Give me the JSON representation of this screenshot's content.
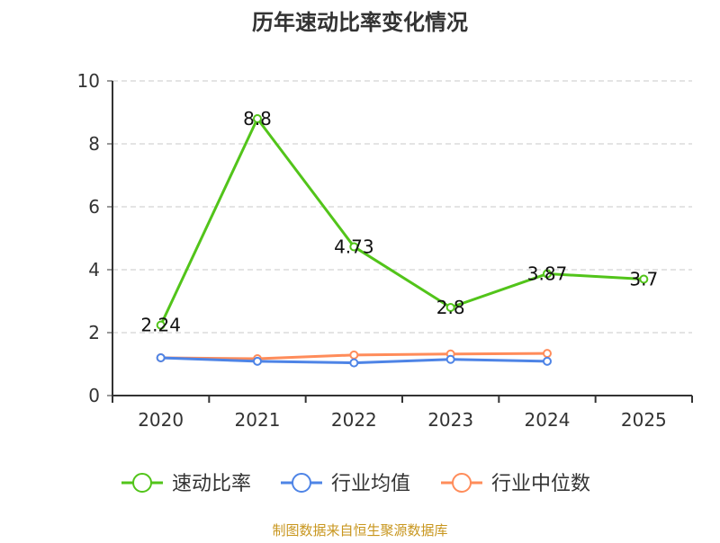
{
  "chart_data": {
    "type": "line",
    "title": "历年速动比率变化情况",
    "categories": [
      "2020",
      "2021",
      "2022",
      "2023",
      "2024",
      "2025"
    ],
    "ylim": [
      0,
      10
    ],
    "yticks": [
      "0",
      "2",
      "4",
      "6",
      "8",
      "10"
    ],
    "grid": true,
    "legend_position": "bottom",
    "series": [
      {
        "name": "速动比率",
        "color": "#52c41a",
        "values": [
          2.24,
          8.8,
          4.73,
          2.8,
          3.87,
          3.7
        ],
        "labels": [
          "2.24",
          "8.8",
          "4.73",
          "2.8",
          "3.87",
          "3.7"
        ]
      },
      {
        "name": "行业均值",
        "color": "#4e84e6",
        "values": [
          1.2,
          1.09,
          1.04,
          1.15,
          1.09,
          null
        ]
      },
      {
        "name": "行业中位数",
        "color": "#ff8c5a",
        "values": [
          1.2,
          1.17,
          1.29,
          1.32,
          1.34,
          null
        ]
      }
    ]
  },
  "source": "制图数据来自恒生聚源数据库"
}
